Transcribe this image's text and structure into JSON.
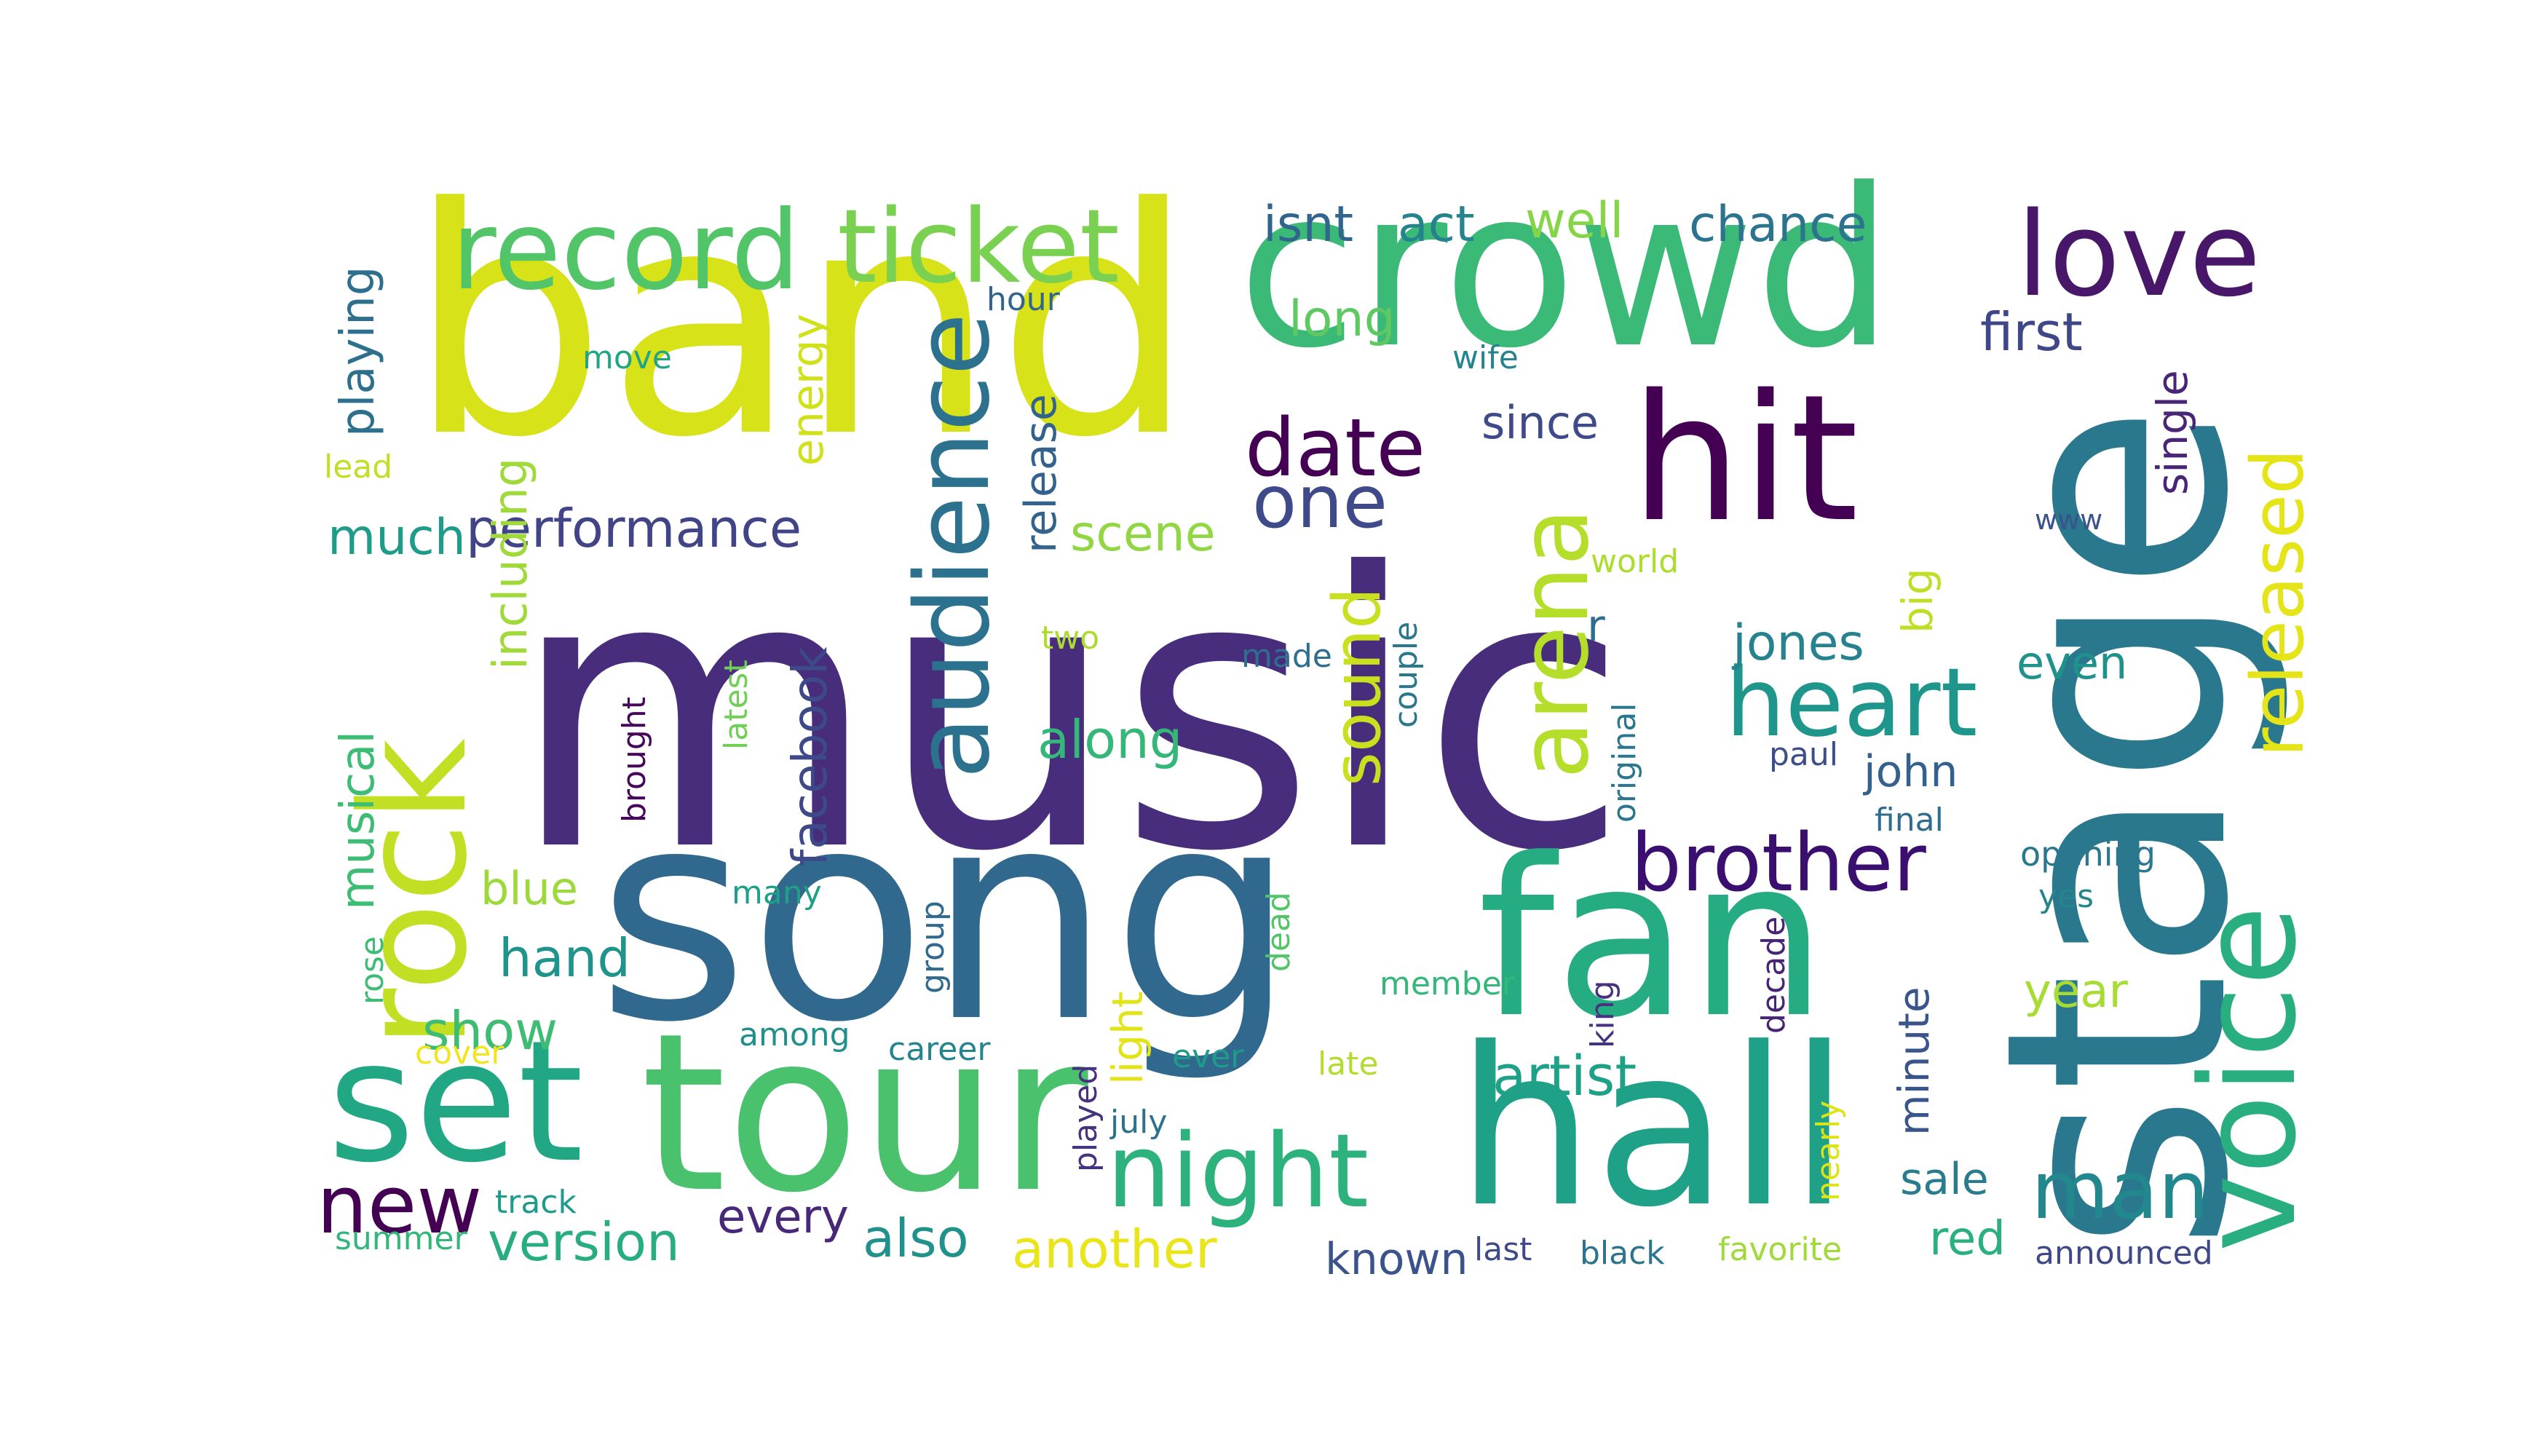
{
  "words": [
    {
      "text": "music",
      "color": "#472d7b",
      "rotate": 0
    },
    {
      "text": "song",
      "color": "#31688e",
      "rotate": 0
    },
    {
      "text": "band",
      "color": "#d8e219",
      "rotate": 0
    },
    {
      "text": "crowd",
      "color": "#3aba76",
      "rotate": 0
    },
    {
      "text": "stage",
      "color": "#2a788e",
      "rotate": -90
    },
    {
      "text": "tour",
      "color": "#4ac16d",
      "rotate": 0
    },
    {
      "text": "fan",
      "color": "#25ac82",
      "rotate": 0
    },
    {
      "text": "hall",
      "color": "#1fa187",
      "rotate": 0
    },
    {
      "text": "hit",
      "color": "#440154",
      "rotate": 0
    },
    {
      "text": "rock",
      "color": "#c2df23",
      "rotate": -90
    },
    {
      "text": "set",
      "color": "#22a785",
      "rotate": 0
    },
    {
      "text": "voice",
      "color": "#29af7f",
      "rotate": -90
    },
    {
      "text": "record",
      "color": "#52c569",
      "rotate": 0
    },
    {
      "text": "ticket",
      "color": "#7ad151",
      "rotate": 0
    },
    {
      "text": "love",
      "color": "#481769",
      "rotate": 0
    },
    {
      "text": "arena",
      "color": "#b5de2b",
      "rotate": -90
    },
    {
      "text": "audience",
      "color": "#2c728e",
      "rotate": -90
    },
    {
      "text": "heart",
      "color": "#1f968b",
      "rotate": 0
    },
    {
      "text": "night",
      "color": "#2db27d",
      "rotate": 0
    },
    {
      "text": "released",
      "color": "#e5e419",
      "rotate": -90
    },
    {
      "text": "brother",
      "color": "#3b0f70",
      "rotate": 0
    },
    {
      "text": "date",
      "color": "#440154",
      "rotate": 0
    },
    {
      "text": "one",
      "color": "#3e4a89",
      "rotate": 0
    },
    {
      "text": "man",
      "color": "#23888e",
      "rotate": 0
    },
    {
      "text": "new",
      "color": "#440154",
      "rotate": 0
    },
    {
      "text": "sound",
      "color": "#c8e020",
      "rotate": -90
    },
    {
      "text": "performance",
      "color": "#414487",
      "rotate": 0
    },
    {
      "text": "facebook",
      "color": "#3e4989",
      "rotate": -90
    },
    {
      "text": "artist",
      "color": "#1fa188",
      "rotate": 0
    },
    {
      "text": "first",
      "color": "#3f4788",
      "rotate": 0
    },
    {
      "text": "along",
      "color": "#35b779",
      "rotate": 0
    },
    {
      "text": "hand",
      "color": "#1f948c",
      "rotate": 0
    },
    {
      "text": "show",
      "color": "#3fbc73",
      "rotate": 0
    },
    {
      "text": "version",
      "color": "#27ad81",
      "rotate": 0
    },
    {
      "text": "another",
      "color": "#eae51a",
      "rotate": 0
    },
    {
      "text": "also",
      "color": "#21918c",
      "rotate": 0
    },
    {
      "text": "jones",
      "color": "#26828e",
      "rotate": 0
    },
    {
      "text": "chance",
      "color": "#2c738e",
      "rotate": 0
    },
    {
      "text": "act",
      "color": "#25838e",
      "rotate": 0
    },
    {
      "text": "isnt",
      "color": "#32658e",
      "rotate": 0
    },
    {
      "text": "well",
      "color": "#86d549",
      "rotate": 0
    },
    {
      "text": "long",
      "color": "#5ec962",
      "rotate": 0
    },
    {
      "text": "much",
      "color": "#1e9c89",
      "rotate": 0
    },
    {
      "text": "scene",
      "color": "#90d743",
      "rotate": 0
    },
    {
      "text": "playing",
      "color": "#2e6f8e",
      "rotate": -90
    },
    {
      "text": "including",
      "color": "#9fda3a",
      "rotate": -90
    },
    {
      "text": "musical",
      "color": "#3dbc74",
      "rotate": -90
    },
    {
      "text": "blue",
      "color": "#9dd93b",
      "rotate": 0
    },
    {
      "text": "release",
      "color": "#33638d",
      "rotate": -90
    },
    {
      "text": "energy",
      "color": "#d0e11c",
      "rotate": -90
    },
    {
      "text": "since",
      "color": "#3e4a89",
      "rotate": 0
    },
    {
      "text": "single",
      "color": "#482576",
      "rotate": -90
    },
    {
      "text": "even",
      "color": "#20928c",
      "rotate": 0
    },
    {
      "text": "john",
      "color": "#34608d",
      "rotate": 0
    },
    {
      "text": "minute",
      "color": "#3a548c",
      "rotate": -90
    },
    {
      "text": "year",
      "color": "#a8db34",
      "rotate": 0
    },
    {
      "text": "sale",
      "color": "#287c8e",
      "rotate": 0
    },
    {
      "text": "red",
      "color": "#2ab07f",
      "rotate": 0
    },
    {
      "text": "every",
      "color": "#482878",
      "rotate": 0
    },
    {
      "text": "known",
      "color": "#3b528b",
      "rotate": 0
    },
    {
      "text": "light",
      "color": "#e2e418",
      "rotate": -90
    },
    {
      "text": "big",
      "color": "#bddf26",
      "rotate": -90
    },
    {
      "text": "r",
      "color": "#2d708e",
      "rotate": 0
    },
    {
      "text": "world",
      "color": "#addc30",
      "rotate": 0
    },
    {
      "text": "two",
      "color": "#addc30",
      "rotate": 0
    },
    {
      "text": "made",
      "color": "#2e6e8e",
      "rotate": 0
    },
    {
      "text": "couple",
      "color": "#2a778e",
      "rotate": -90
    },
    {
      "text": "original",
      "color": "#2a768e",
      "rotate": -90
    },
    {
      "text": "paul",
      "color": "#3c4f8a",
      "rotate": 0
    },
    {
      "text": "final",
      "color": "#2f6c8e",
      "rotate": 0
    },
    {
      "text": "opening",
      "color": "#2a778e",
      "rotate": 0
    },
    {
      "text": "yes",
      "color": "#25858e",
      "rotate": 0
    },
    {
      "text": "www",
      "color": "#3a538b",
      "rotate": 0
    },
    {
      "text": "hour",
      "color": "#32658e",
      "rotate": 0
    },
    {
      "text": "move",
      "color": "#21a585",
      "rotate": 0
    },
    {
      "text": "wife",
      "color": "#25848e",
      "rotate": 0
    },
    {
      "text": "lead",
      "color": "#c2df23",
      "rotate": 0
    },
    {
      "text": "latest",
      "color": "#70cf57",
      "rotate": -90
    },
    {
      "text": "brought",
      "color": "#46075a",
      "rotate": -90
    },
    {
      "text": "many",
      "color": "#1fa187",
      "rotate": 0
    },
    {
      "text": "group",
      "color": "#306a8e",
      "rotate": -90
    },
    {
      "text": "dead",
      "color": "#52c569",
      "rotate": -90
    },
    {
      "text": "member",
      "color": "#35b779",
      "rotate": 0
    },
    {
      "text": "king",
      "color": "#46327e",
      "rotate": -90
    },
    {
      "text": "decade",
      "color": "#482475",
      "rotate": -90
    },
    {
      "text": "rose",
      "color": "#3dbc74",
      "rotate": -90
    },
    {
      "text": "among",
      "color": "#21908d",
      "rotate": 0
    },
    {
      "text": "career",
      "color": "#25858e",
      "rotate": 0
    },
    {
      "text": "cover",
      "color": "#f1e51d",
      "rotate": 0
    },
    {
      "text": "ever",
      "color": "#1e9b8a",
      "rotate": 0
    },
    {
      "text": "late",
      "color": "#b2dd2d",
      "rotate": 0
    },
    {
      "text": "played",
      "color": "#46327e",
      "rotate": -90
    },
    {
      "text": "july",
      "color": "#2c718e",
      "rotate": 0
    },
    {
      "text": "nearly",
      "color": "#dde318",
      "rotate": -90
    },
    {
      "text": "track",
      "color": "#1e9b8a",
      "rotate": 0
    },
    {
      "text": "summer",
      "color": "#34b679",
      "rotate": 0
    },
    {
      "text": "last",
      "color": "#3e4a89",
      "rotate": 0
    },
    {
      "text": "black",
      "color": "#2c738e",
      "rotate": 0
    },
    {
      "text": "favorite",
      "color": "#a0da39",
      "rotate": 0
    },
    {
      "text": "announced",
      "color": "#3f4889",
      "rotate": 0
    }
  ]
}
